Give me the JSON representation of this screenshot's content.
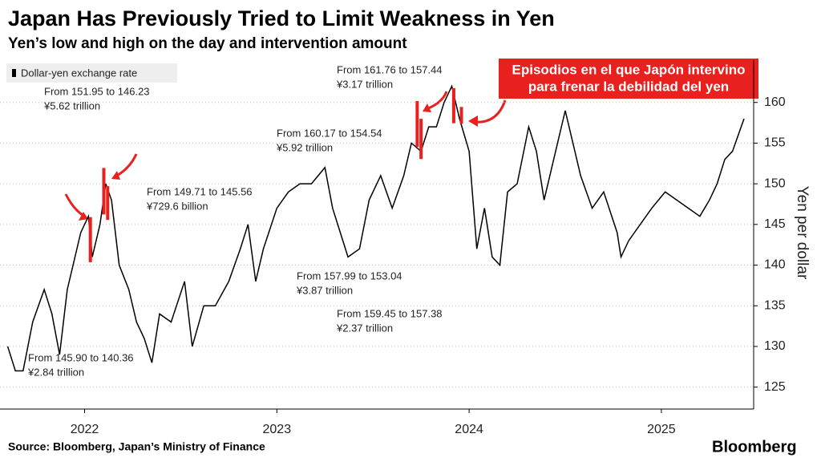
{
  "chart_data": {
    "type": "line",
    "title": "Japan Has Previously Tried to Limit Weakness in Yen",
    "subtitle": "Yen’s low and high on the day and intervention amount",
    "y_label": "Yen per dollar",
    "source": "Source: Bloomberg, Japan’s Ministry of Finance",
    "brand": "Bloomberg",
    "callout": [
      "Episodios en el que Japón intervino",
      "para frenar la debilidad del yen"
    ],
    "xlim": [
      2021.56,
      2025.48
    ],
    "xticks": [
      2022,
      2023,
      2024,
      2025
    ],
    "ylim": [
      122.3,
      165.2
    ],
    "yticks": [
      125,
      130,
      135,
      140,
      145,
      150,
      155,
      160
    ],
    "grid": true,
    "legend": "top-left",
    "series": [
      {
        "name": "Dollar-yen exchange rate",
        "color": "#000000",
        "x": [
          2021.6,
          2021.64,
          2021.68,
          2021.73,
          2021.79,
          2021.83,
          2021.87,
          2021.91,
          2021.98,
          2022.02,
          2022.04,
          2022.08,
          2022.11,
          2022.14,
          2022.18,
          2022.23,
          2022.27,
          2022.31,
          2022.35,
          2022.39,
          2022.45,
          2022.52,
          2022.56,
          2022.62,
          2022.68,
          2022.75,
          2022.81,
          2022.85,
          2022.89,
          2022.93,
          2023.0,
          2023.06,
          2023.12,
          2023.18,
          2023.25,
          2023.29,
          2023.33,
          2023.37,
          2023.43,
          2023.48,
          2023.54,
          2023.6,
          2023.66,
          2023.7,
          2023.75,
          2023.79,
          2023.83,
          2023.87,
          2023.91,
          2023.95,
          2024.0,
          2024.04,
          2024.08,
          2024.12,
          2024.16,
          2024.2,
          2024.25,
          2024.31,
          2024.35,
          2024.39,
          2024.43,
          2024.5,
          2024.54,
          2024.58,
          2024.64,
          2024.7,
          2024.77,
          2024.79,
          2024.83,
          2024.89,
          2024.95,
          2025.02,
          2025.08,
          2025.14,
          2025.2,
          2025.25,
          2025.29,
          2025.33,
          2025.37,
          2025.4,
          2025.43
        ],
        "values": [
          130,
          127,
          127,
          133,
          137,
          134,
          129,
          137,
          144,
          146,
          141,
          145,
          150,
          148,
          140,
          137,
          133,
          131,
          128,
          134,
          133,
          138,
          130,
          135,
          135,
          138,
          142,
          145,
          138,
          142,
          147,
          149,
          150,
          150,
          152,
          147,
          144,
          141,
          142,
          148,
          151,
          147,
          151,
          155,
          154,
          157,
          157,
          160,
          162,
          158,
          154,
          142,
          147,
          141,
          140,
          149,
          150,
          157,
          154,
          148,
          152,
          159,
          155,
          151,
          147,
          149,
          144,
          141,
          143,
          145,
          147,
          149,
          148,
          147,
          146,
          148,
          150,
          153,
          154,
          156,
          158
        ]
      }
    ],
    "interventions": [
      {
        "x": 2022.03,
        "high": 145.9,
        "low": 140.36,
        "label": "From 145.90 to 140.36",
        "amount": "¥2.84 trillion"
      },
      {
        "x": 2022.1,
        "high": 151.95,
        "low": 146.23,
        "label": "From 151.95 to 146.23",
        "amount": "¥5.62 trillion"
      },
      {
        "x": 2022.12,
        "high": 149.71,
        "low": 145.56,
        "label": "From 149.71 to 145.56",
        "amount": "¥729.6 billion"
      },
      {
        "x": 2023.73,
        "high": 160.17,
        "low": 154.54,
        "label": "From 160.17 to 154.54",
        "amount": "¥5.92 trillion"
      },
      {
        "x": 2023.75,
        "high": 157.99,
        "low": 153.04,
        "label": "From 157.99 to 153.04",
        "amount": "¥3.87 trillion"
      },
      {
        "x": 2023.92,
        "high": 161.76,
        "low": 157.44,
        "label": "From 161.76 to 157.44",
        "amount": "¥3.17 trillion"
      },
      {
        "x": 2023.96,
        "high": 159.45,
        "low": 157.38,
        "label": "From 159.45 to 157.38",
        "amount": "¥2.37 trillion"
      }
    ]
  }
}
